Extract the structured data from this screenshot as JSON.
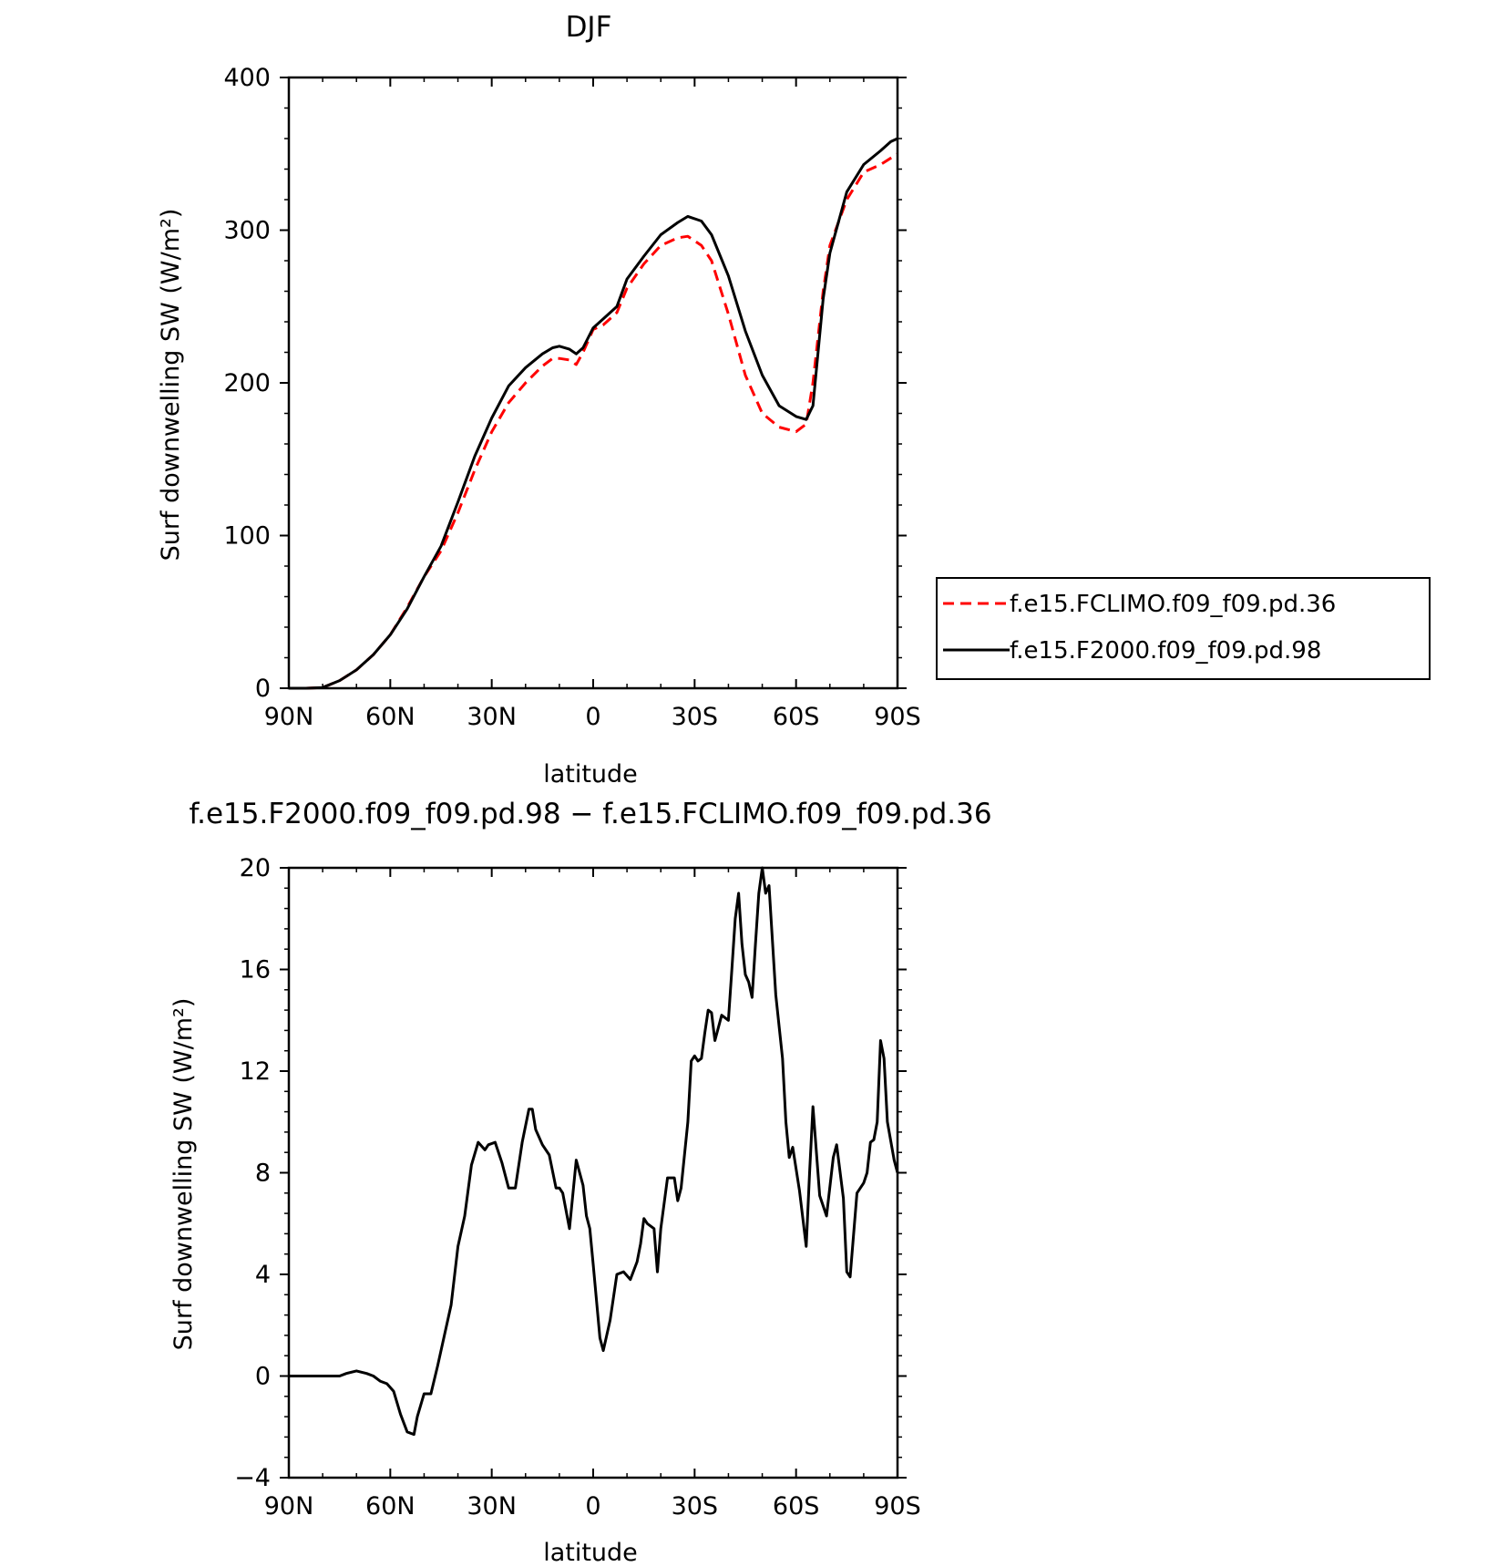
{
  "chart_data": [
    {
      "type": "line",
      "title": "DJF",
      "xlabel": "latitude",
      "ylabel": "Surf downwelling SW (W/m²)",
      "ylim": [
        0,
        400
      ],
      "xlim": [
        90,
        -90
      ],
      "x_ticks": [
        90,
        60,
        30,
        0,
        -30,
        -60,
        -90
      ],
      "x_tick_labels": [
        "90N",
        "60N",
        "30N",
        "0",
        "30S",
        "60S",
        "90S"
      ],
      "y_ticks": [
        0,
        100,
        200,
        300,
        400
      ],
      "y_tick_labels": [
        "0",
        "100",
        "200",
        "300",
        "400"
      ],
      "legend_position": "right",
      "series": [
        {
          "name": "f.e15.FCLIMO.f09_f09.pd.36",
          "color": "#ff0000",
          "style": "dashed",
          "x": [
            90,
            85,
            80,
            75,
            70,
            65,
            60,
            55,
            50,
            45,
            40,
            35,
            30,
            25,
            20,
            15,
            12,
            10,
            7,
            5,
            3,
            0,
            -3,
            -7,
            -10,
            -15,
            -20,
            -25,
            -28,
            -32,
            -35,
            -40,
            -45,
            -50,
            -55,
            -60,
            -63,
            -65,
            -68,
            -70,
            -75,
            -80,
            -85,
            -90
          ],
          "y": [
            0,
            0,
            0.5,
            5,
            12,
            22,
            35,
            53,
            73,
            90,
            115,
            143,
            168,
            187,
            200,
            211,
            216,
            216,
            215,
            212,
            220,
            235,
            238,
            246,
            262,
            278,
            290,
            295,
            296,
            290,
            280,
            245,
            205,
            180,
            171,
            168,
            173,
            200,
            260,
            290,
            320,
            338,
            343,
            350
          ]
        },
        {
          "name": "f.e15.F2000.f09_f09.pd.98",
          "color": "#000000",
          "style": "solid",
          "x": [
            90,
            85,
            80,
            75,
            70,
            65,
            60,
            55,
            50,
            45,
            40,
            35,
            30,
            25,
            20,
            15,
            12,
            10,
            7,
            5,
            3,
            0,
            -3,
            -7,
            -10,
            -15,
            -20,
            -25,
            -28,
            -32,
            -35,
            -40,
            -45,
            -50,
            -55,
            -60,
            -63,
            -65,
            -68,
            -70,
            -75,
            -80,
            -85,
            -88,
            -90
          ],
          "y": [
            0,
            0,
            0.5,
            5,
            12,
            22,
            35,
            52,
            73,
            93,
            122,
            152,
            177,
            198,
            210,
            219,
            223,
            224,
            222,
            219,
            223,
            236,
            242,
            250,
            268,
            283,
            297,
            305,
            309,
            306,
            297,
            270,
            234,
            205,
            185,
            178,
            176,
            185,
            255,
            285,
            325,
            343,
            352,
            358,
            360
          ]
        }
      ]
    },
    {
      "type": "line",
      "title": "f.e15.F2000.f09_f09.pd.98 − f.e15.FCLIMO.f09_f09.pd.36",
      "xlabel": "latitude",
      "ylabel": "Surf downwelling SW (W/m²)",
      "ylim": [
        -4,
        20
      ],
      "xlim": [
        90,
        -90
      ],
      "x_ticks": [
        90,
        60,
        30,
        0,
        -30,
        -60,
        -90
      ],
      "x_tick_labels": [
        "90N",
        "60N",
        "30N",
        "0",
        "30S",
        "60S",
        "90S"
      ],
      "y_ticks": [
        -4,
        0,
        4,
        8,
        12,
        16,
        20
      ],
      "y_tick_labels": [
        "−4",
        "0",
        "4",
        "8",
        "12",
        "16",
        "20"
      ],
      "series": [
        {
          "color": "#000000",
          "style": "solid",
          "x": [
            90,
            80,
            75,
            73,
            70,
            67,
            65,
            63,
            61,
            59,
            57,
            55,
            53,
            52,
            50,
            48,
            46,
            44,
            42,
            40,
            38,
            36,
            34,
            32,
            31,
            29,
            27,
            25,
            23,
            21,
            19,
            18,
            17,
            15,
            13,
            11,
            10,
            9,
            7,
            5,
            3,
            2,
            1,
            0,
            -2,
            -3,
            -5,
            -7,
            -9,
            -11,
            -13,
            -14,
            -15,
            -16,
            -18,
            -19,
            -20,
            -22,
            -24,
            -25,
            -26,
            -28,
            -29,
            -30,
            -31,
            -32,
            -33,
            -34,
            -35,
            -36,
            -38,
            -40,
            -41,
            -42,
            -43,
            -44,
            -45,
            -46,
            -47,
            -48,
            -49,
            -50,
            -51,
            -52,
            -54,
            -56,
            -57,
            -58,
            -59,
            -61,
            -63,
            -64,
            -65,
            -67,
            -69,
            -71,
            -72,
            -74,
            -75,
            -76,
            -78,
            -80,
            -81,
            -82,
            -83,
            -84,
            -85,
            -86,
            -87,
            -89,
            -90
          ],
          "y": [
            0,
            0,
            0,
            0.1,
            0.2,
            0.1,
            0,
            -0.2,
            -0.3,
            -0.6,
            -1.5,
            -2.2,
            -2.3,
            -1.6,
            -0.7,
            -0.7,
            0.4,
            1.6,
            2.8,
            5.1,
            6.3,
            8.3,
            9.2,
            8.9,
            9.1,
            9.2,
            8.4,
            7.4,
            7.4,
            9.2,
            10.5,
            10.5,
            9.7,
            9.1,
            8.7,
            7.4,
            7.4,
            7.2,
            5.8,
            8.5,
            7.5,
            6.3,
            5.8,
            4.4,
            1.5,
            1.0,
            2.2,
            4.0,
            4.1,
            3.8,
            4.5,
            5.2,
            6.2,
            6.0,
            5.8,
            4.1,
            5.8,
            7.8,
            7.8,
            6.9,
            7.4,
            10,
            12.4,
            12.6,
            12.4,
            12.5,
            13.5,
            14.4,
            14.3,
            13.2,
            14.2,
            14.0,
            16.0,
            18.0,
            19.0,
            17.0,
            15.8,
            15.5,
            14.9,
            17.0,
            19.0,
            20.0,
            19.0,
            19.3,
            15.0,
            12.5,
            10.0,
            8.6,
            9.0,
            7.3,
            5.1,
            8.0,
            10.6,
            7.1,
            6.3,
            8.6,
            9.1,
            7.0,
            4.1,
            3.9,
            7.2,
            7.6,
            8.0,
            9.2,
            9.3,
            10.0,
            13.2,
            12.5,
            10.0,
            8.5,
            8.0
          ]
        }
      ]
    }
  ]
}
